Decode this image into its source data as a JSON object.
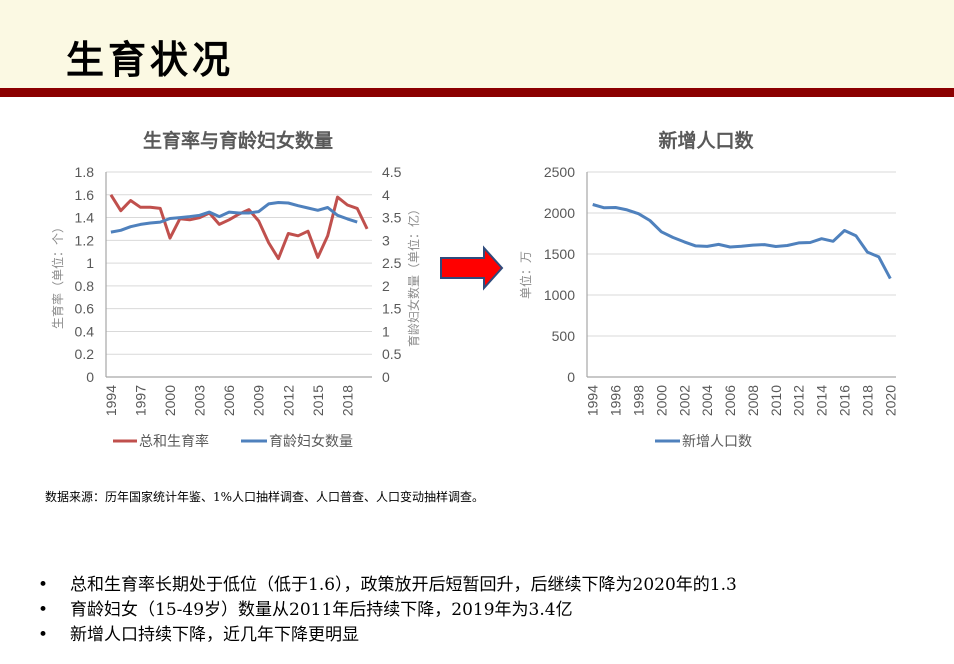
{
  "slide": {
    "title": "生育状况",
    "source_note": "数据来源：历年国家统计年鉴、1%人口抽样调查、人口普查、人口变动抽样调查。",
    "bullets": [
      "总和生育率长期处于低位（低于1.6），政策放开后短暂回升，后继续下降为2020年的1.3",
      "育龄妇女（15-49岁）数量从2011年后持续下降，2019年为3.4亿",
      "新增人口持续下降，近几年下降更明显"
    ],
    "bullet_symbol": "•",
    "colors": {
      "header_bg": "#fbf9e3",
      "header_band": "#8b0000",
      "arrow": "#ff0000",
      "arrow_border": "#2f4b7c"
    }
  },
  "chart_data": [
    {
      "type": "line",
      "title": "生育率与育龄妇女数量",
      "xlabel": "",
      "ylabel": "生育率（单位：个）",
      "y2label": "育龄妇女数量（单位：亿）",
      "ylim": [
        0,
        1.8
      ],
      "y2lim": [
        0,
        4.5
      ],
      "yticks": [
        "0",
        "0.2",
        "0.4",
        "0.6",
        "0.8",
        "1",
        "1.2",
        "1.4",
        "1.6",
        "1.8"
      ],
      "y2ticks": [
        "0",
        "0.5",
        "1",
        "1.5",
        "2",
        "2.5",
        "3",
        "3.5",
        "4",
        "4.5"
      ],
      "x": [
        1994,
        1995,
        1996,
        1997,
        1998,
        1999,
        2000,
        2001,
        2002,
        2003,
        2004,
        2005,
        2006,
        2007,
        2008,
        2009,
        2010,
        2011,
        2012,
        2013,
        2014,
        2015,
        2016,
        2017,
        2018,
        2019,
        2020
      ],
      "xtick_labels": [
        "1994",
        "1997",
        "2000",
        "2003",
        "2006",
        "2009",
        "2012",
        "2015",
        "2018"
      ],
      "grid": true,
      "legend_position": "bottom",
      "series": [
        {
          "name": "总和生育率",
          "axis": "left",
          "color": "#c0504d",
          "values": [
            1.6,
            1.46,
            1.55,
            1.49,
            1.49,
            1.48,
            1.22,
            1.39,
            1.38,
            1.4,
            1.44,
            1.34,
            1.38,
            1.43,
            1.47,
            1.37,
            1.18,
            1.04,
            1.26,
            1.24,
            1.28,
            1.05,
            1.24,
            1.58,
            1.51,
            1.48,
            1.3
          ]
        },
        {
          "name": "育龄妇女数量",
          "axis": "right",
          "color": "#4f81bd",
          "values": [
            3.18,
            3.22,
            3.3,
            3.35,
            3.38,
            3.4,
            3.48,
            3.5,
            3.52,
            3.55,
            3.62,
            3.52,
            3.62,
            3.6,
            3.6,
            3.63,
            3.8,
            3.83,
            3.82,
            3.76,
            3.71,
            3.66,
            3.72,
            3.55,
            3.47,
            3.4,
            null
          ]
        }
      ]
    },
    {
      "type": "line",
      "title": "新增人口数",
      "xlabel": "",
      "ylabel": "单位：万",
      "ylim": [
        0,
        2500
      ],
      "yticks": [
        "0",
        "500",
        "1000",
        "1500",
        "2000",
        "2500"
      ],
      "x": [
        1994,
        1995,
        1996,
        1997,
        1998,
        1999,
        2000,
        2001,
        2002,
        2003,
        2004,
        2005,
        2006,
        2007,
        2008,
        2009,
        2010,
        2011,
        2012,
        2013,
        2014,
        2015,
        2016,
        2017,
        2018,
        2019,
        2020
      ],
      "xtick_labels": [
        "1994",
        "1996",
        "1998",
        "2000",
        "2002",
        "2004",
        "2006",
        "2008",
        "2010",
        "2012",
        "2014",
        "2016",
        "2018",
        "2020"
      ],
      "grid": true,
      "legend_position": "bottom",
      "series": [
        {
          "name": "新增人口数",
          "color": "#4f81bd",
          "values": [
            2104,
            2063,
            2067,
            2038,
            1991,
            1909,
            1771,
            1702,
            1647,
            1599,
            1593,
            1617,
            1585,
            1594,
            1608,
            1615,
            1592,
            1604,
            1635,
            1640,
            1687,
            1655,
            1786,
            1723,
            1523,
            1465,
            1200
          ]
        }
      ]
    }
  ]
}
